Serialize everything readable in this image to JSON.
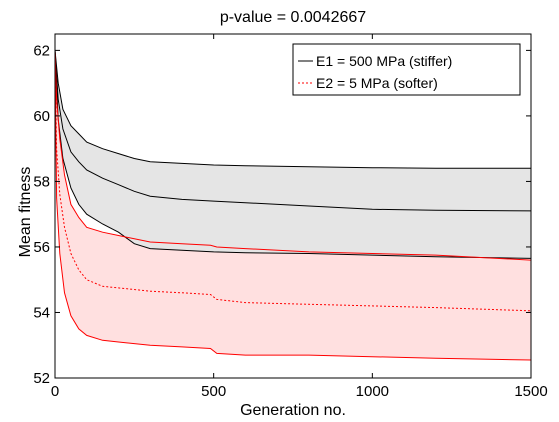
{
  "chart_data": {
    "type": "line",
    "title": "p-value = 0.0042667",
    "xlabel": "Generation no.",
    "ylabel": "Mean fitness",
    "xlim": [
      0,
      1500
    ],
    "ylim": [
      52,
      62.5
    ],
    "xticks": [
      0,
      500,
      1000,
      1500
    ],
    "yticks": [
      52,
      54,
      56,
      58,
      60,
      62
    ],
    "grid": false,
    "legend_position": "top-right",
    "series": [
      {
        "name": "E1 = 500 MPa (stiffer)",
        "color": "#000000",
        "band_fill": "#e5e5e5",
        "x": [
          0,
          10,
          25,
          50,
          75,
          100,
          150,
          200,
          250,
          300,
          400,
          500,
          600,
          800,
          1000,
          1200,
          1500
        ],
        "mean": [
          62.0,
          60.5,
          59.6,
          58.9,
          58.6,
          58.35,
          58.1,
          57.9,
          57.7,
          57.55,
          57.45,
          57.4,
          57.35,
          57.25,
          57.15,
          57.12,
          57.1
        ],
        "upper": [
          62.0,
          61.0,
          60.2,
          59.7,
          59.45,
          59.2,
          59.0,
          58.85,
          58.7,
          58.6,
          58.55,
          58.5,
          58.48,
          58.45,
          58.42,
          58.4,
          58.4
        ],
        "lower": [
          62.0,
          59.9,
          58.7,
          57.8,
          57.3,
          57.0,
          56.7,
          56.45,
          56.1,
          55.95,
          55.9,
          55.85,
          55.82,
          55.8,
          55.75,
          55.7,
          55.65
        ]
      },
      {
        "name": "E2 = 5 MPa (softer)",
        "color": "#ff0000",
        "band_fill": "#ffe0e0",
        "x": [
          0,
          5,
          15,
          30,
          50,
          75,
          100,
          150,
          200,
          250,
          300,
          400,
          490,
          510,
          600,
          800,
          1000,
          1200,
          1500
        ],
        "mean": [
          62.0,
          59.0,
          57.6,
          56.6,
          55.8,
          55.3,
          55.0,
          54.8,
          54.75,
          54.7,
          54.65,
          54.6,
          54.55,
          54.4,
          54.3,
          54.25,
          54.2,
          54.15,
          54.05
        ],
        "upper": [
          62.0,
          60.5,
          59.3,
          58.2,
          57.3,
          56.9,
          56.6,
          56.45,
          56.35,
          56.25,
          56.15,
          56.1,
          56.05,
          56.0,
          55.95,
          55.85,
          55.8,
          55.75,
          55.6
        ],
        "lower": [
          62.0,
          57.5,
          55.8,
          54.6,
          53.9,
          53.5,
          53.3,
          53.15,
          53.1,
          53.05,
          53.0,
          52.95,
          52.9,
          52.75,
          52.7,
          52.7,
          52.65,
          52.6,
          52.55
        ]
      }
    ]
  }
}
